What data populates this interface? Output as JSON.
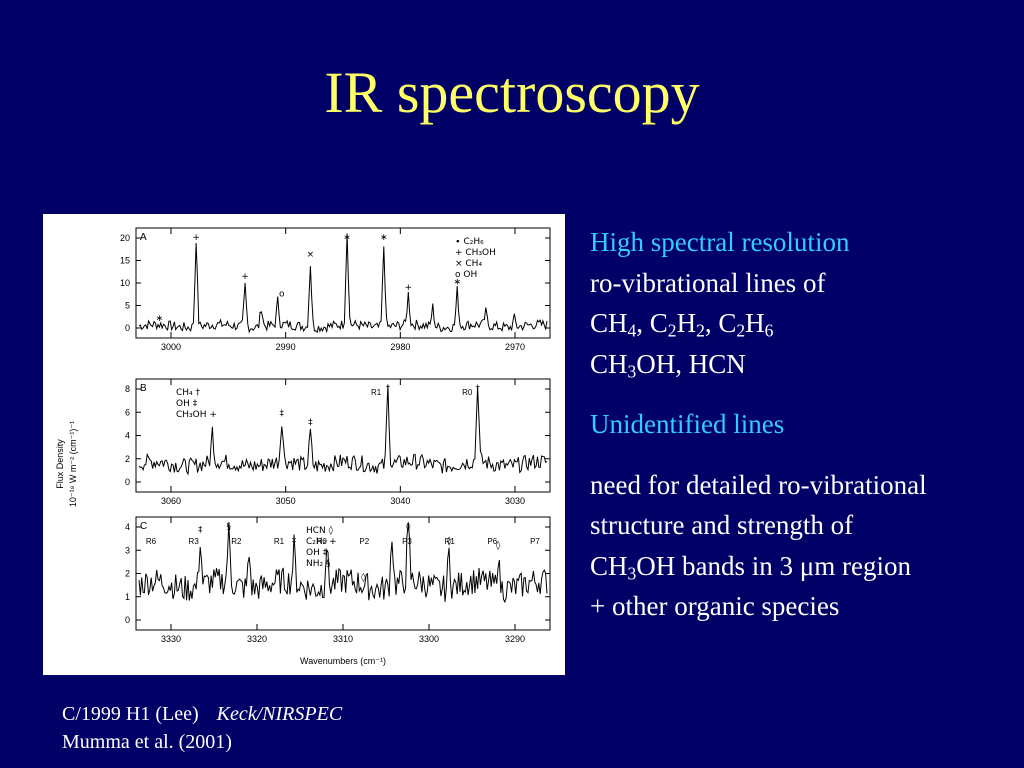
{
  "title": "IR spectroscopy",
  "bullets": {
    "heading1": "High spectral resolution",
    "line1": "ro-vibrational lines of",
    "mol1": {
      "a": "CH",
      "a_sub": "4",
      "b": ", C",
      "b_sub1": "2",
      "c": "H",
      "c_sub": "2",
      "d": ", C",
      "d_sub": "2",
      "e": "H",
      "e_sub": "6"
    },
    "mol2": {
      "a": "CH",
      "a_sub": "3",
      "b": "OH, HCN"
    },
    "heading2": "Unidentified lines",
    "line2": "need for detailed ro-vibrational",
    "line3": "structure and strength of",
    "line4": {
      "a": "CH",
      "a_sub": "3",
      "b": "OH bands in 3 μm region"
    },
    "line5": "+ other organic species"
  },
  "caption": {
    "line1": "C/1999 H1 (Lee)",
    "instrument": "Keck/NIRSPEC",
    "line2": "Mumma et al. (2001)"
  },
  "figure": {
    "y_axis_label_1": "Flux Density",
    "y_axis_label_2": "10⁻¹⁸ W m⁻² (cm⁻¹)⁻¹",
    "x_axis_label": "Wavenumbers (cm⁻¹)",
    "panels": [
      {
        "letter": "A",
        "yticks": [
          "0",
          "5",
          "10",
          "15",
          "20"
        ],
        "ymax": 20,
        "xticks": [
          "3000",
          "2990",
          "2980",
          "2970"
        ],
        "legend": [
          "∙ C₂H₆",
          "+ CH₃OH",
          "× CH₄",
          "o OH"
        ]
      },
      {
        "letter": "B",
        "yticks": [
          "0",
          "2",
          "4",
          "6",
          "8"
        ],
        "ymax": 8,
        "xticks": [
          "3060",
          "3050",
          "3040",
          "3030"
        ],
        "legend": [
          "CH₄ †",
          "OH ‡",
          "CH₃OH +"
        ],
        "line_labels": [
          "R1",
          "R0"
        ]
      },
      {
        "letter": "C",
        "yticks": [
          "0",
          "1",
          "2",
          "3",
          "4"
        ],
        "ymax": 4,
        "xticks": [
          "3330",
          "3320",
          "3310",
          "3300",
          "3290"
        ],
        "legend": [
          "HCN ◊",
          "C₂H₂ +",
          "OH ‡",
          "NH₂ §"
        ],
        "line_labels": [
          "R6",
          "R3",
          "R2",
          "R1",
          "R0",
          "P2",
          "P3",
          "R1",
          "P6",
          "P7"
        ]
      }
    ]
  }
}
